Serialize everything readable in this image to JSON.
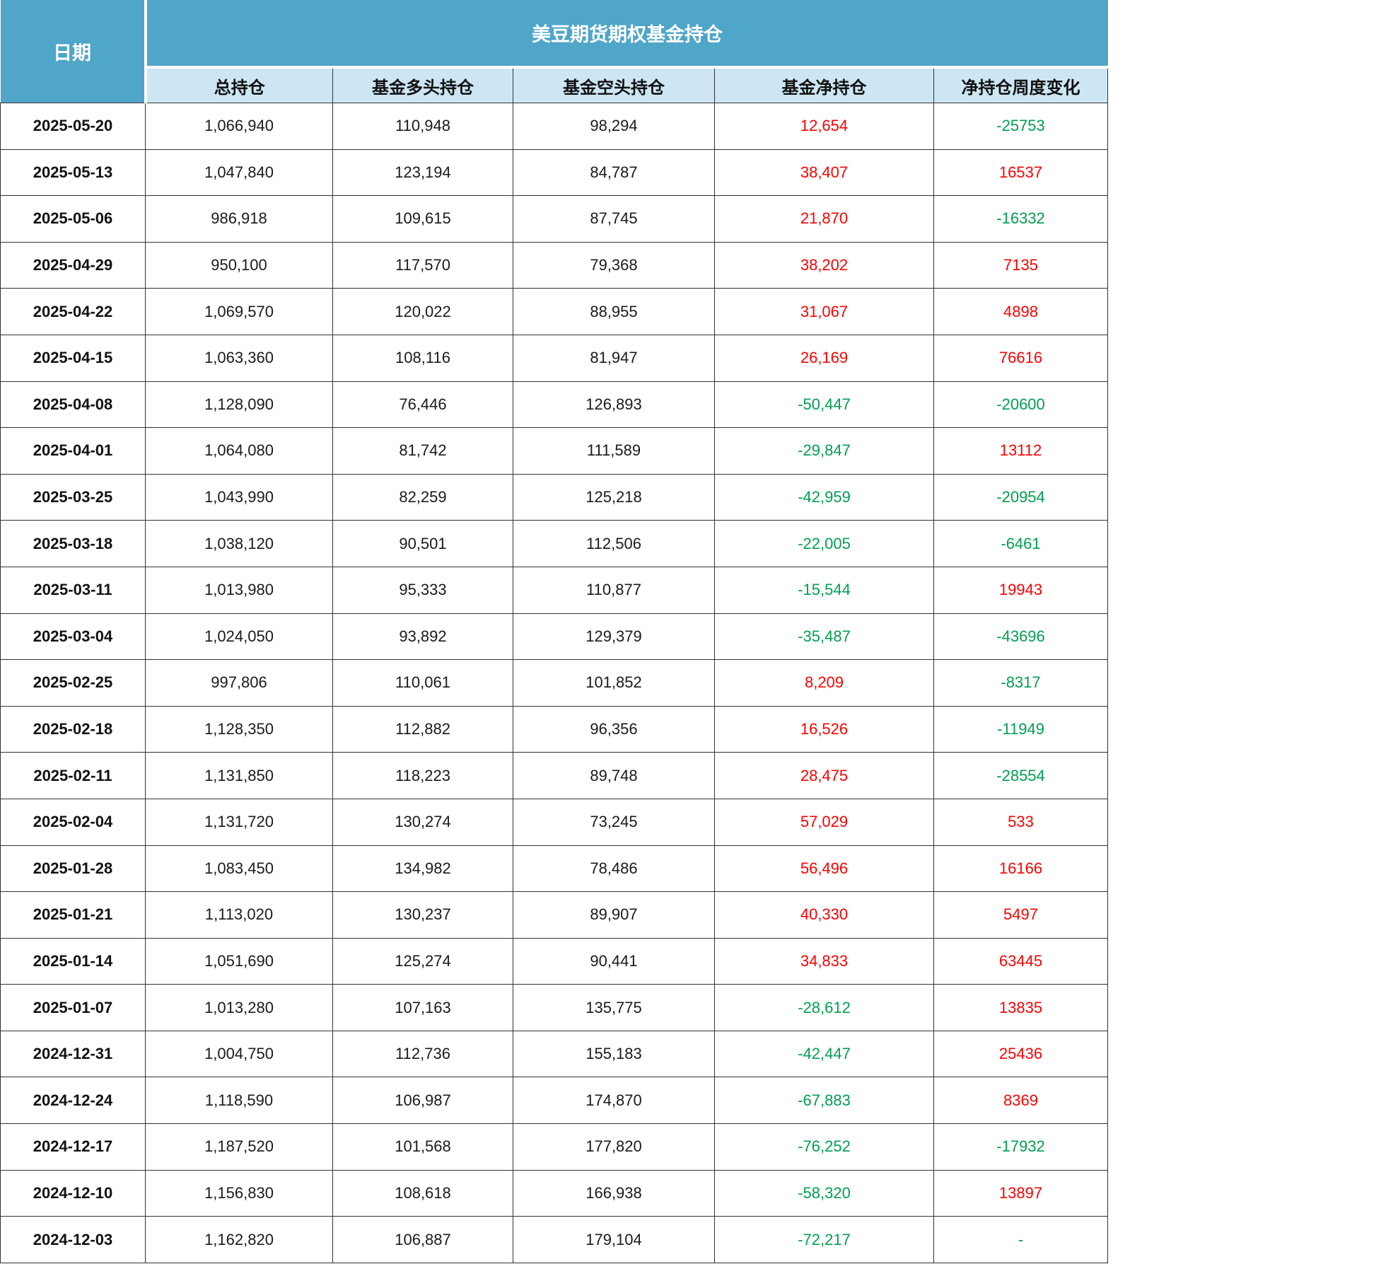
{
  "chart_data": {
    "type": "table",
    "title": "美豆期货期权基金持仓",
    "corner_header": "日期",
    "column_headers": [
      "总持仓",
      "基金多头持仓",
      "基金空头持仓",
      "基金净持仓",
      "净持仓周度变化"
    ],
    "rows": [
      [
        "2025-05-20",
        "1,066,940",
        "110,948",
        "98,294",
        "12,654",
        "-25753"
      ],
      [
        "2025-05-13",
        "1,047,840",
        "123,194",
        "84,787",
        "38,407",
        "16537"
      ],
      [
        "2025-05-06",
        "986,918",
        "109,615",
        "87,745",
        "21,870",
        "-16332"
      ],
      [
        "2025-04-29",
        "950,100",
        "117,570",
        "79,368",
        "38,202",
        "7135"
      ],
      [
        "2025-04-22",
        "1,069,570",
        "120,022",
        "88,955",
        "31,067",
        "4898"
      ],
      [
        "2025-04-15",
        "1,063,360",
        "108,116",
        "81,947",
        "26,169",
        "76616"
      ],
      [
        "2025-04-08",
        "1,128,090",
        "76,446",
        "126,893",
        "-50,447",
        "-20600"
      ],
      [
        "2025-04-01",
        "1,064,080",
        "81,742",
        "111,589",
        "-29,847",
        "13112"
      ],
      [
        "2025-03-25",
        "1,043,990",
        "82,259",
        "125,218",
        "-42,959",
        "-20954"
      ],
      [
        "2025-03-18",
        "1,038,120",
        "90,501",
        "112,506",
        "-22,005",
        "-6461"
      ],
      [
        "2025-03-11",
        "1,013,980",
        "95,333",
        "110,877",
        "-15,544",
        "19943"
      ],
      [
        "2025-03-04",
        "1,024,050",
        "93,892",
        "129,379",
        "-35,487",
        "-43696"
      ],
      [
        "2025-02-25",
        "997,806",
        "110,061",
        "101,852",
        "8,209",
        "-8317"
      ],
      [
        "2025-02-18",
        "1,128,350",
        "112,882",
        "96,356",
        "16,526",
        "-11949"
      ],
      [
        "2025-02-11",
        "1,131,850",
        "118,223",
        "89,748",
        "28,475",
        "-28554"
      ],
      [
        "2025-02-04",
        "1,131,720",
        "130,274",
        "73,245",
        "57,029",
        "533"
      ],
      [
        "2025-01-28",
        "1,083,450",
        "134,982",
        "78,486",
        "56,496",
        "16166"
      ],
      [
        "2025-01-21",
        "1,113,020",
        "130,237",
        "89,907",
        "40,330",
        "5497"
      ],
      [
        "2025-01-14",
        "1,051,690",
        "125,274",
        "90,441",
        "34,833",
        "63445"
      ],
      [
        "2025-01-07",
        "1,013,280",
        "107,163",
        "135,775",
        "-28,612",
        "13835"
      ],
      [
        "2024-12-31",
        "1,004,750",
        "112,736",
        "155,183",
        "-42,447",
        "25436"
      ],
      [
        "2024-12-24",
        "1,118,590",
        "106,987",
        "174,870",
        "-67,883",
        "8369"
      ],
      [
        "2024-12-17",
        "1,187,520",
        "101,568",
        "177,820",
        "-76,252",
        "-17932"
      ],
      [
        "2024-12-10",
        "1,156,830",
        "108,618",
        "166,938",
        "-58,320",
        "13897"
      ],
      [
        "2024-12-03",
        "1,162,820",
        "106,887",
        "179,104",
        "-72,217",
        "-"
      ]
    ]
  },
  "colors": {
    "header_bg": "#4FA6C9",
    "subheader_bg": "#CDE6F3",
    "positive_value": "#FF0000",
    "negative_value": "#00A050",
    "border": "#333333",
    "text": "#1A1A1A"
  }
}
